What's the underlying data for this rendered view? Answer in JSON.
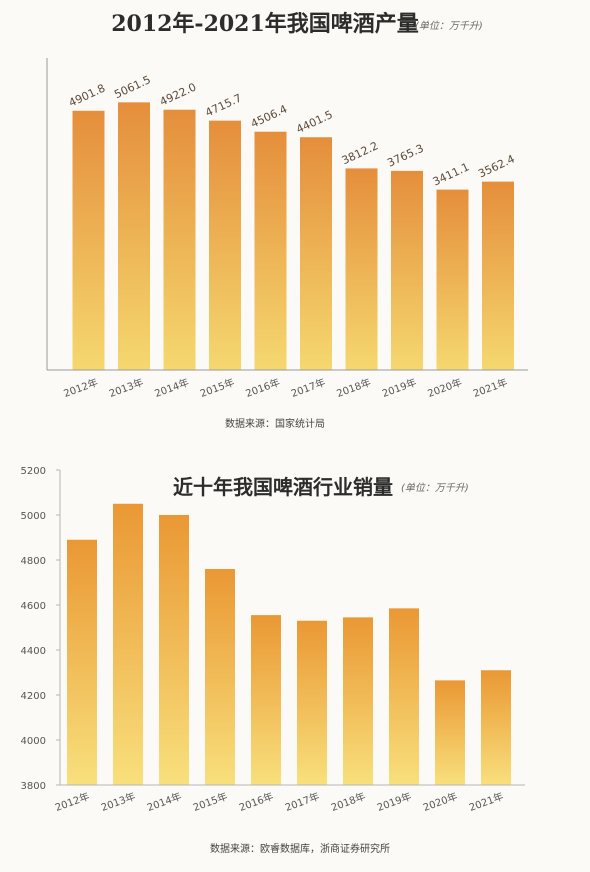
{
  "chart_data": [
    {
      "type": "bar",
      "title": "2012年-2021年我国啤酒产量",
      "unit": "(单位：万千升)",
      "categories": [
        "2012年",
        "2013年",
        "2014年",
        "2015年",
        "2016年",
        "2017年",
        "2018年",
        "2019年",
        "2020年",
        "2021年"
      ],
      "values": [
        4901.8,
        5061.5,
        4922.0,
        4715.7,
        4506.4,
        4401.5,
        3812.2,
        3765.3,
        3411.1,
        3562.4
      ],
      "value_labels": [
        "4901.8",
        "5061.5",
        "4922.0",
        "4715.7",
        "4506.4",
        "4401.5",
        "3812.2",
        "3765.3",
        "3411.1",
        "3562.4"
      ],
      "xlabel": "",
      "ylabel": "",
      "ylim": [
        0,
        5900
      ],
      "yticks": [],
      "grid": false,
      "source": "数据来源：国家统计局",
      "colors": {
        "bar_top": "#e58e3b",
        "bar_bottom": "#f5d86f",
        "axis": "#9a9a9a"
      }
    },
    {
      "type": "bar",
      "title": "近十年我国啤酒行业销量",
      "unit": "(单位：万千升)",
      "categories": [
        "2012年",
        "2013年",
        "2014年",
        "2015年",
        "2016年",
        "2017年",
        "2018年",
        "2019年",
        "2020年",
        "2021年"
      ],
      "values": [
        4890,
        5050,
        5000,
        4760,
        4555,
        4530,
        4545,
        4585,
        4265,
        4310
      ],
      "xlabel": "",
      "ylabel": "",
      "ylim": [
        3800,
        5200
      ],
      "yticks": [
        5200,
        5000,
        4800,
        4600,
        4400,
        4200,
        4000,
        3800
      ],
      "grid": false,
      "source": "数据来源：欧睿数据库，浙商证券研究所",
      "colors": {
        "bar_top": "#ea9834",
        "bar_bottom": "#f8e07c",
        "axis": "#b5b5b5"
      }
    }
  ]
}
